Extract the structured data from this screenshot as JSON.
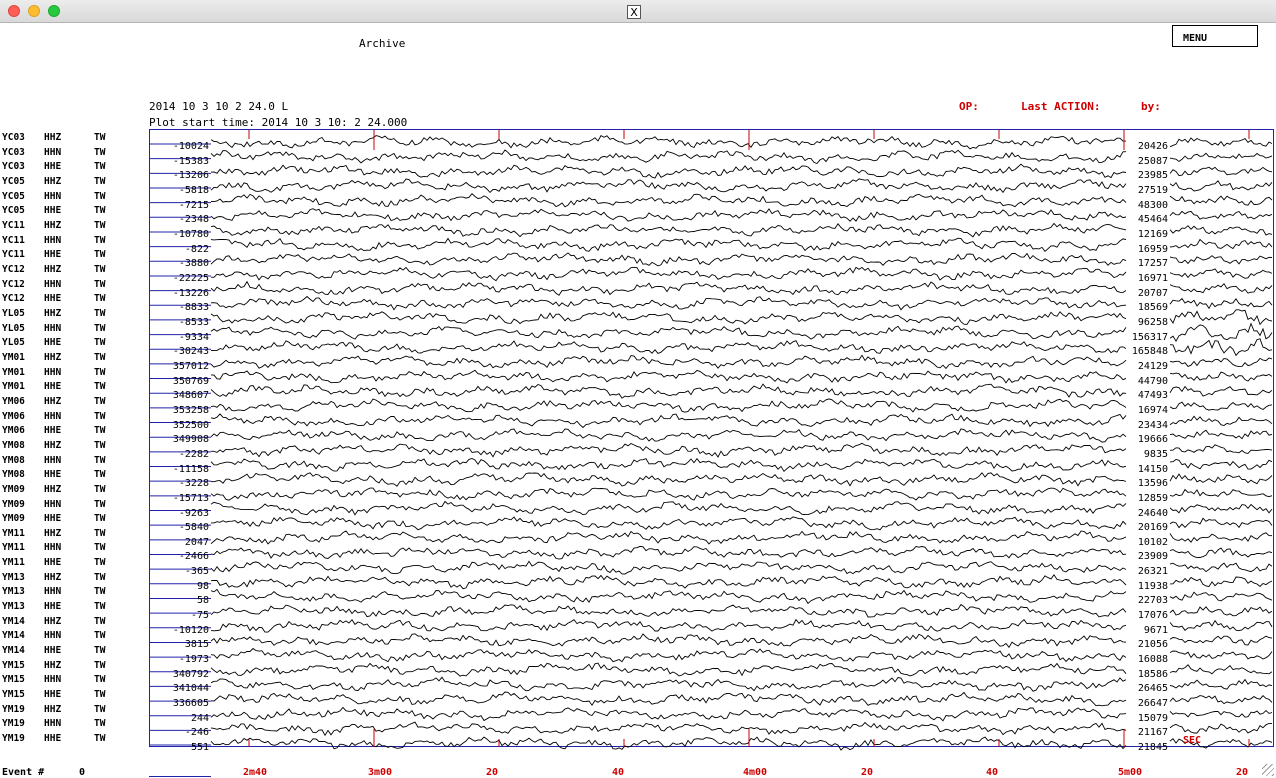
{
  "window": {
    "close_icon": "close-dot",
    "x_icon_label": "X"
  },
  "header": {
    "archive_label": "Archive",
    "menu_label": "MENU",
    "date_line": "2014 10 3 10 2 24.0 L",
    "plot_start": "Plot start time: 2014  10  3   10: 2  24.000",
    "op_label": "OP:",
    "last_action_label": "Last ACTION:",
    "by_label": "by:"
  },
  "channels": [
    {
      "sta": "YC03",
      "cmp": "HHZ",
      "net": "TW",
      "left": "-10024",
      "right": "20426"
    },
    {
      "sta": "YC03",
      "cmp": "HHN",
      "net": "TW",
      "left": "-15383",
      "right": "25087"
    },
    {
      "sta": "YC03",
      "cmp": "HHE",
      "net": "TW",
      "left": "-13206",
      "right": "23985"
    },
    {
      "sta": "YC05",
      "cmp": "HHZ",
      "net": "TW",
      "left": "-5818",
      "right": "27519"
    },
    {
      "sta": "YC05",
      "cmp": "HHN",
      "net": "TW",
      "left": "-7215",
      "right": "48300"
    },
    {
      "sta": "YC05",
      "cmp": "HHE",
      "net": "TW",
      "left": "-2348",
      "right": "45464"
    },
    {
      "sta": "YC11",
      "cmp": "HHZ",
      "net": "TW",
      "left": "-10780",
      "right": "12169"
    },
    {
      "sta": "YC11",
      "cmp": "HHN",
      "net": "TW",
      "left": "-822",
      "right": "16959"
    },
    {
      "sta": "YC11",
      "cmp": "HHE",
      "net": "TW",
      "left": "-3880",
      "right": "17257"
    },
    {
      "sta": "YC12",
      "cmp": "HHZ",
      "net": "TW",
      "left": "-22225",
      "right": "16971"
    },
    {
      "sta": "YC12",
      "cmp": "HHN",
      "net": "TW",
      "left": "-13226",
      "right": "20707"
    },
    {
      "sta": "YC12",
      "cmp": "HHE",
      "net": "TW",
      "left": "-8833",
      "right": "18569"
    },
    {
      "sta": "YL05",
      "cmp": "HHZ",
      "net": "TW",
      "left": "-8533",
      "right": "96258"
    },
    {
      "sta": "YL05",
      "cmp": "HHN",
      "net": "TW",
      "left": "-9334",
      "right": "156317"
    },
    {
      "sta": "YL05",
      "cmp": "HHE",
      "net": "TW",
      "left": "-30243",
      "right": "165848"
    },
    {
      "sta": "YM01",
      "cmp": "HHZ",
      "net": "TW",
      "left": "357012",
      "right": "24129"
    },
    {
      "sta": "YM01",
      "cmp": "HHN",
      "net": "TW",
      "left": "350769",
      "right": "44790"
    },
    {
      "sta": "YM01",
      "cmp": "HHE",
      "net": "TW",
      "left": "348607",
      "right": "47493"
    },
    {
      "sta": "YM06",
      "cmp": "HHZ",
      "net": "TW",
      "left": "353258",
      "right": "16974"
    },
    {
      "sta": "YM06",
      "cmp": "HHN",
      "net": "TW",
      "left": "352500",
      "right": "23434"
    },
    {
      "sta": "YM06",
      "cmp": "HHE",
      "net": "TW",
      "left": "349908",
      "right": "19666"
    },
    {
      "sta": "YM08",
      "cmp": "HHZ",
      "net": "TW",
      "left": "-2282",
      "right": "9835"
    },
    {
      "sta": "YM08",
      "cmp": "HHN",
      "net": "TW",
      "left": "-11158",
      "right": "14150"
    },
    {
      "sta": "YM08",
      "cmp": "HHE",
      "net": "TW",
      "left": "-3228",
      "right": "13596"
    },
    {
      "sta": "YM09",
      "cmp": "HHZ",
      "net": "TW",
      "left": "-15713",
      "right": "12859"
    },
    {
      "sta": "YM09",
      "cmp": "HHN",
      "net": "TW",
      "left": "-9263",
      "right": "24640"
    },
    {
      "sta": "YM09",
      "cmp": "HHE",
      "net": "TW",
      "left": "-5840",
      "right": "20169"
    },
    {
      "sta": "YM11",
      "cmp": "HHZ",
      "net": "TW",
      "left": "2047",
      "right": "10102"
    },
    {
      "sta": "YM11",
      "cmp": "HHN",
      "net": "TW",
      "left": "-2466",
      "right": "23909"
    },
    {
      "sta": "YM11",
      "cmp": "HHE",
      "net": "TW",
      "left": "-365",
      "right": "26321"
    },
    {
      "sta": "YM13",
      "cmp": "HHZ",
      "net": "TW",
      "left": "98",
      "right": "11938"
    },
    {
      "sta": "YM13",
      "cmp": "HHN",
      "net": "TW",
      "left": "58",
      "right": "22703"
    },
    {
      "sta": "YM13",
      "cmp": "HHE",
      "net": "TW",
      "left": "-75",
      "right": "17076"
    },
    {
      "sta": "YM14",
      "cmp": "HHZ",
      "net": "TW",
      "left": "-10120",
      "right": "9671"
    },
    {
      "sta": "YM14",
      "cmp": "HHN",
      "net": "TW",
      "left": "3815",
      "right": "21056"
    },
    {
      "sta": "YM14",
      "cmp": "HHE",
      "net": "TW",
      "left": "-1973",
      "right": "16088"
    },
    {
      "sta": "YM15",
      "cmp": "HHZ",
      "net": "TW",
      "left": "340792",
      "right": "18586"
    },
    {
      "sta": "YM15",
      "cmp": "HHN",
      "net": "TW",
      "left": "341044",
      "right": "26465"
    },
    {
      "sta": "YM15",
      "cmp": "HHE",
      "net": "TW",
      "left": "336605",
      "right": "26647"
    },
    {
      "sta": "YM19",
      "cmp": "HHZ",
      "net": "TW",
      "left": "244",
      "right": "15079"
    },
    {
      "sta": "YM19",
      "cmp": "HHN",
      "net": "TW",
      "left": "-246",
      "right": "21167"
    },
    {
      "sta": "YM19",
      "cmp": "HHE",
      "net": "TW",
      "left": "551",
      "right": "21845"
    }
  ],
  "time_axis": {
    "ticks": [
      "2m40",
      "3m00",
      "20",
      "40",
      "4m00",
      "20",
      "40",
      "5m00",
      "20"
    ],
    "unit_label": "SEC"
  },
  "footer": {
    "event_label": "Event #",
    "event_value": "0"
  }
}
